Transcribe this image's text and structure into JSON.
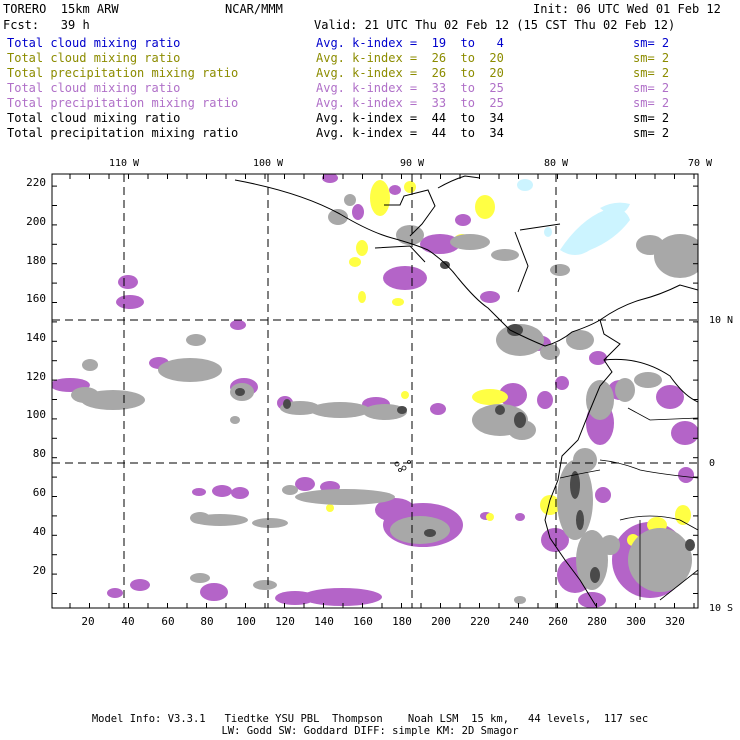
{
  "header": {
    "model": "TORERO  15km ARW",
    "org": "NCAR/MMM",
    "init": "Init: 06 UTC Wed 01 Feb 12",
    "fcst": "Fcst:   39 h",
    "valid": "Valid: 21 UTC Thu 02 Feb 12 (15 CST Thu 02 Feb 12)"
  },
  "legend": [
    {
      "field": "Total cloud mixing ratio",
      "kindex": "Avg. k-index =  19  to   4",
      "sm": "sm= 2",
      "color": "#0000cc"
    },
    {
      "field": "Total cloud mixing ratio",
      "kindex": "Avg. k-index =  26  to  20",
      "sm": "sm= 2",
      "color": "#8c8c00"
    },
    {
      "field": "Total precipitation mixing ratio",
      "kindex": "Avg. k-index =  26  to  20",
      "sm": "sm= 2",
      "color": "#8c8c00"
    },
    {
      "field": "Total cloud mixing ratio",
      "kindex": "Avg. k-index =  33  to  25",
      "sm": "sm= 2",
      "color": "#b070c8"
    },
    {
      "field": "Total precipitation mixing ratio",
      "kindex": "Avg. k-index =  33  to  25",
      "sm": "sm= 2",
      "color": "#b070c8"
    },
    {
      "field": "Total cloud mixing ratio",
      "kindex": "Avg. k-index =  44  to  34",
      "sm": "sm= 2",
      "color": "#000000"
    },
    {
      "field": "Total precipitation mixing ratio",
      "kindex": "Avg. k-index =  44  to  34",
      "sm": "sm= 2",
      "color": "#000000"
    }
  ],
  "map": {
    "lon_labels": [
      "110 W",
      "100 W",
      "90 W",
      "80 W",
      "70 W"
    ],
    "lat_labels": [
      "10 N",
      "0",
      "10 S"
    ],
    "x_ticks": [
      "20",
      "40",
      "60",
      "80",
      "100",
      "120",
      "140",
      "160",
      "180",
      "200",
      "220",
      "240",
      "260",
      "280",
      "300",
      "320"
    ],
    "y_ticks": [
      "220",
      "200",
      "180",
      "160",
      "140",
      "120",
      "100",
      "80",
      "60",
      "40",
      "20"
    ]
  },
  "footer": {
    "line1": "Model Info: V3.3.1   Tiedtke YSU PBL  Thompson    Noah LSM  15 km,   44 levels,  117 sec",
    "line2": "LW: Godd SW: Goddard DIFF: simple KM: 2D Smagor"
  }
}
